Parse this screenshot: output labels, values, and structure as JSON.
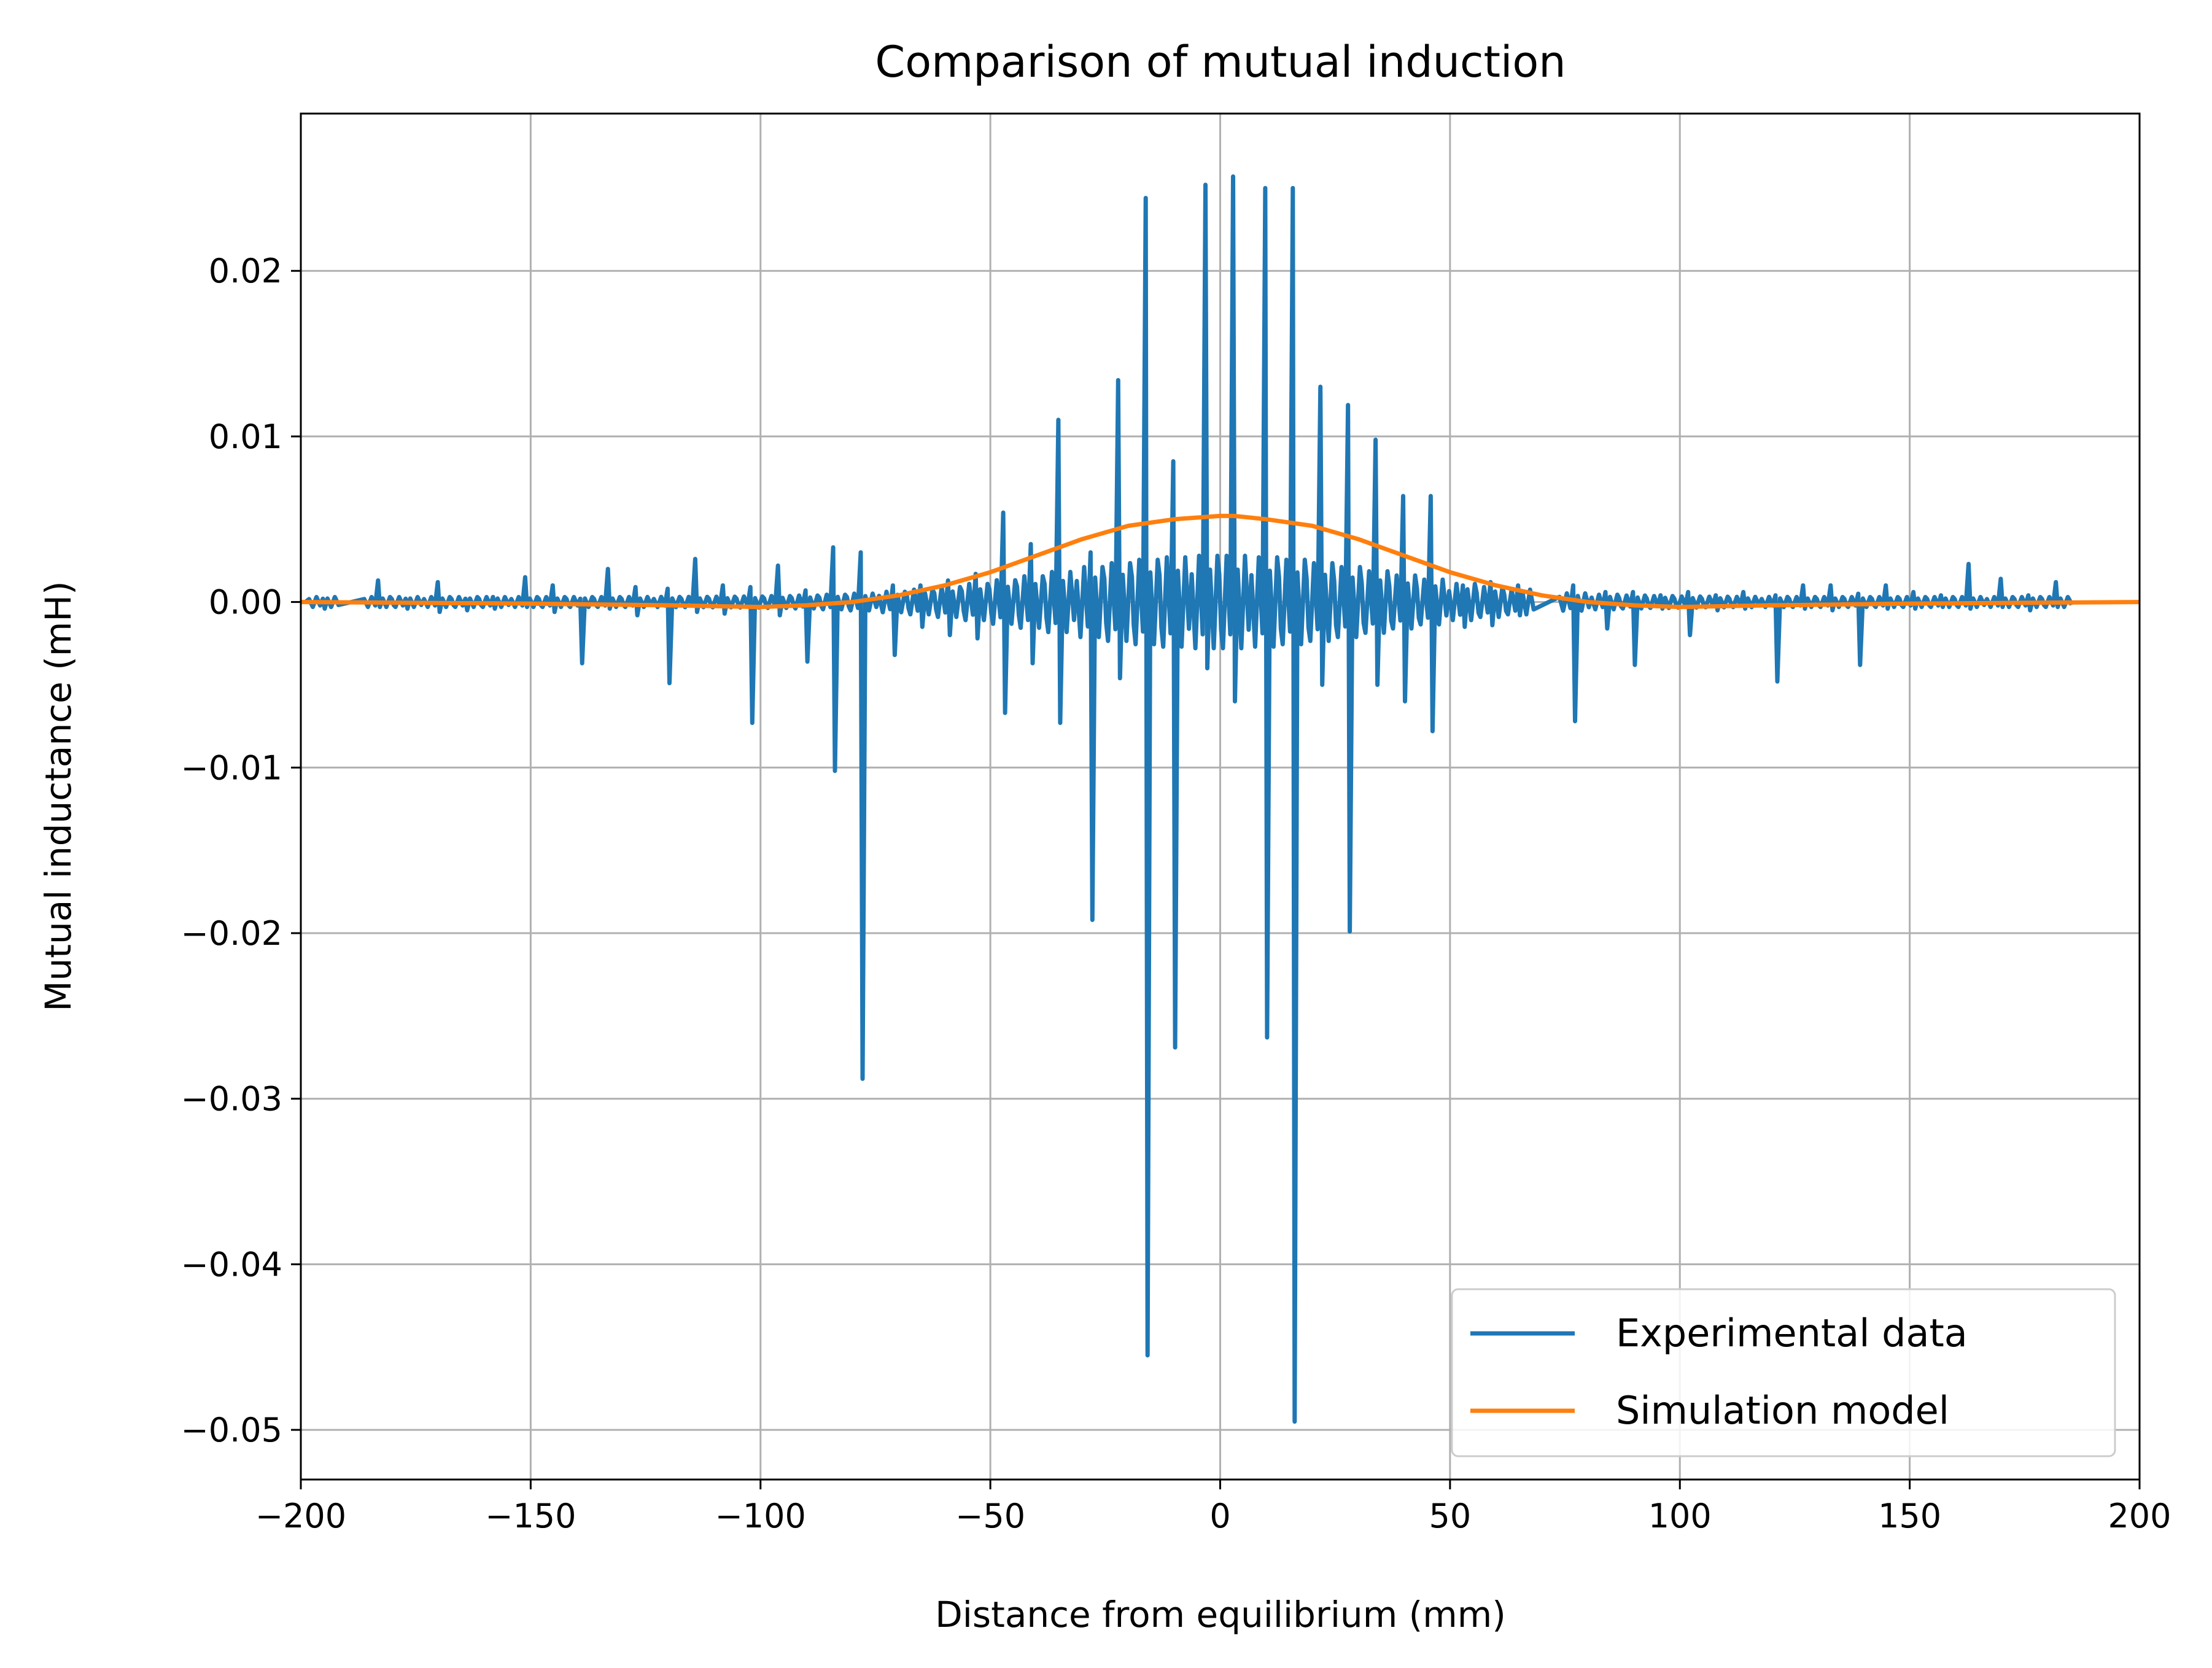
{
  "chart_data": {
    "type": "line",
    "title": "Comparison of mutual induction",
    "xlabel": "Distance from equilibrium (mm)",
    "ylabel": "Mutual inductance (mH)",
    "xlim": [
      -200,
      200
    ],
    "ylim": [
      -0.053,
      0.0295
    ],
    "xticks": [
      -200,
      -150,
      -100,
      -50,
      0,
      50,
      100,
      150,
      200
    ],
    "xtick_labels": [
      "−200",
      "−150",
      "−100",
      "−50",
      "0",
      "50",
      "100",
      "150",
      "200"
    ],
    "yticks": [
      0.02,
      0.01,
      0.0,
      -0.01,
      -0.02,
      -0.03,
      -0.04,
      -0.05
    ],
    "ytick_labels": [
      "0.02",
      "0.01",
      "0.00",
      "−0.01",
      "−0.02",
      "−0.03",
      "−0.04",
      "−0.05"
    ],
    "grid": true,
    "legend_position": "bottom-right",
    "series": [
      {
        "name": "Experimental data",
        "color": "#1f77b4",
        "spikes": [
          [
            -195,
            0.0002,
            -0.0004
          ],
          [
            -183,
            0.0013,
            -0.0003
          ],
          [
            -177,
            0.0002,
            -0.0004
          ],
          [
            -170,
            0.0012,
            -0.0006
          ],
          [
            -164,
            0.0002,
            -0.0005
          ],
          [
            -158,
            0.0003,
            -0.0004
          ],
          [
            -151,
            0.0015,
            -0.0003
          ],
          [
            -145,
            0.001,
            -0.0006
          ],
          [
            -139,
            0.0002,
            -0.0037
          ],
          [
            -133,
            0.002,
            -0.0004
          ],
          [
            -127,
            0.0009,
            -0.0008
          ],
          [
            -120,
            0.0008,
            -0.0049
          ],
          [
            -114,
            0.0026,
            -0.0006
          ],
          [
            -108,
            0.001,
            -0.0007
          ],
          [
            -102,
            0.0009,
            -0.0073
          ],
          [
            -96,
            0.0022,
            -0.0008
          ],
          [
            -90,
            0.0007,
            -0.0036
          ],
          [
            -84,
            0.0033,
            -0.0102
          ],
          [
            -78,
            0.003,
            -0.0288
          ],
          [
            -71,
            0.001,
            -0.0032
          ],
          [
            -65,
            0.001,
            -0.0015
          ],
          [
            -59,
            0.0013,
            -0.002
          ],
          [
            -53,
            0.0017,
            -0.0022
          ],
          [
            -47,
            0.0054,
            -0.0067
          ],
          [
            -41,
            0.0035,
            -0.0037
          ],
          [
            -35,
            0.011,
            -0.0073
          ],
          [
            -28,
            0.003,
            -0.0192
          ],
          [
            -22,
            0.0134,
            -0.0046
          ],
          [
            -16,
            0.0244,
            -0.0455
          ],
          [
            -10,
            0.0085,
            -0.0269
          ],
          [
            -3,
            0.0252,
            -0.004
          ],
          [
            3,
            0.0257,
            -0.006
          ],
          [
            10,
            0.025,
            -0.0263
          ],
          [
            16,
            0.025,
            -0.0495
          ],
          [
            22,
            0.013,
            -0.005
          ],
          [
            28,
            0.0119,
            -0.0199
          ],
          [
            34,
            0.0098,
            -0.005
          ],
          [
            40,
            0.0064,
            -0.006
          ],
          [
            46,
            0.0064,
            -0.0078
          ],
          [
            53,
            0.001,
            -0.0015
          ],
          [
            59,
            0.0012,
            -0.0014
          ],
          [
            65,
            0.001,
            -0.0008
          ],
          [
            77,
            0.001,
            -0.0072
          ],
          [
            84,
            0.0006,
            -0.0016
          ],
          [
            90,
            0.0006,
            -0.0038
          ],
          [
            96,
            0.0004,
            -0.0004
          ],
          [
            102,
            0.0006,
            -0.002
          ],
          [
            108,
            0.0004,
            -0.0005
          ],
          [
            114,
            0.0006,
            -0.0004
          ],
          [
            121,
            0.0004,
            -0.0048
          ],
          [
            127,
            0.001,
            -0.0004
          ],
          [
            133,
            0.001,
            -0.0005
          ],
          [
            139,
            0.0005,
            -0.0038
          ],
          [
            145,
            0.001,
            -0.0004
          ],
          [
            151,
            0.0006,
            -0.0004
          ],
          [
            157,
            0.0004,
            -0.0003
          ],
          [
            163,
            0.0023,
            -0.0004
          ],
          [
            170,
            0.0014,
            -0.0003
          ],
          [
            176,
            0.0004,
            -0.0005
          ],
          [
            182,
            0.0012,
            -0.0003
          ]
        ]
      },
      {
        "name": "Simulation model",
        "color": "#ff7f0e",
        "x": [
          -200,
          -150,
          -120,
          -100,
          -90,
          -80,
          -70,
          -60,
          -50,
          -40,
          -30,
          -20,
          -10,
          0,
          3,
          10,
          20,
          30,
          40,
          50,
          60,
          70,
          80,
          90,
          100,
          120,
          150,
          200
        ],
        "y": [
          0.0,
          -0.0001,
          -0.0002,
          -0.0003,
          -0.0002,
          0.0,
          0.0004,
          0.001,
          0.0018,
          0.0028,
          0.0038,
          0.0046,
          0.005,
          0.0052,
          0.0052,
          0.005,
          0.0046,
          0.0038,
          0.0028,
          0.0018,
          0.001,
          0.0004,
          0.0,
          -0.0002,
          -0.0003,
          -0.0002,
          -0.0001,
          0.0
        ]
      }
    ]
  }
}
